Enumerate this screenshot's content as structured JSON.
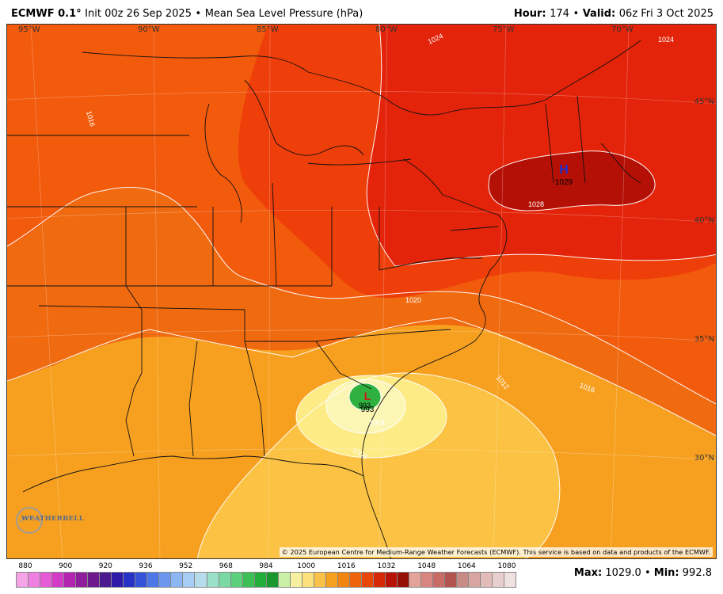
{
  "header": {
    "model": "ECMWF 0.1",
    "degree": "°",
    "init": "Init 00z 26 Sep 2025",
    "sep1": "•",
    "field": "Mean Sea Level Pressure (hPa)",
    "hour_label": "Hour:",
    "hour_value": "174",
    "sep2": "•",
    "valid_label": "Valid:",
    "valid_value": "06z Fri 3 Oct 2025"
  },
  "map": {
    "lon_labels": [
      "95°W",
      "90°W",
      "85°W",
      "80°W",
      "75°W",
      "70°W"
    ],
    "lat_labels": [
      "45°N",
      "40°N",
      "35°N",
      "30°N"
    ],
    "contour_labels": [
      "1024",
      "1024",
      "1016",
      "1028",
      "1020",
      "1016",
      "1012",
      "1004",
      "1008",
      "993"
    ],
    "high": {
      "symbol": "H",
      "value": "1029",
      "color": "#1b2fd6"
    },
    "low": {
      "symbol": "L",
      "value": "993",
      "color": "#d01818"
    },
    "copyright": "© 2025 European Centre for Medium-Range Weather Forecasts (ECMWF). This service is based on data and products of the ECMWF.",
    "logo_text": "WEATHERBELL",
    "logo_icon": "weatherbell-logo-icon"
  },
  "legend": {
    "tick_labels": [
      "880",
      "900",
      "920",
      "936",
      "952",
      "968",
      "984",
      "1000",
      "1016",
      "1032",
      "1048",
      "1064",
      "1080"
    ],
    "colors": [
      "#f5a4e8",
      "#ef7fe0",
      "#e85bd6",
      "#d23cc7",
      "#b324b0",
      "#8f1d9b",
      "#6e1a8c",
      "#4b1990",
      "#2d1aa8",
      "#2532c5",
      "#3453d9",
      "#4e76e6",
      "#6b98ee",
      "#8cb6f2",
      "#a8cdf5",
      "#b6dceb",
      "#9adfc8",
      "#7ad9a4",
      "#5ccf7c",
      "#3cbf55",
      "#23ad3a",
      "#1a982d",
      "#c9f0a6",
      "#f5f0a0",
      "#fbe07c",
      "#f9c34a",
      "#f6a21f",
      "#f28410",
      "#ee640a",
      "#e84708",
      "#d62a06",
      "#b81405",
      "#961004",
      "#e3a29a",
      "#d8867f",
      "#c96c66",
      "#b35450",
      "#c98b86",
      "#d8a6a2",
      "#e2bcb9",
      "#e8cfcd",
      "#efe1e0"
    ]
  },
  "stats": {
    "max_label": "Max:",
    "max_value": "1029.0",
    "sep": "•",
    "min_label": "Min:",
    "min_value": "992.8"
  }
}
